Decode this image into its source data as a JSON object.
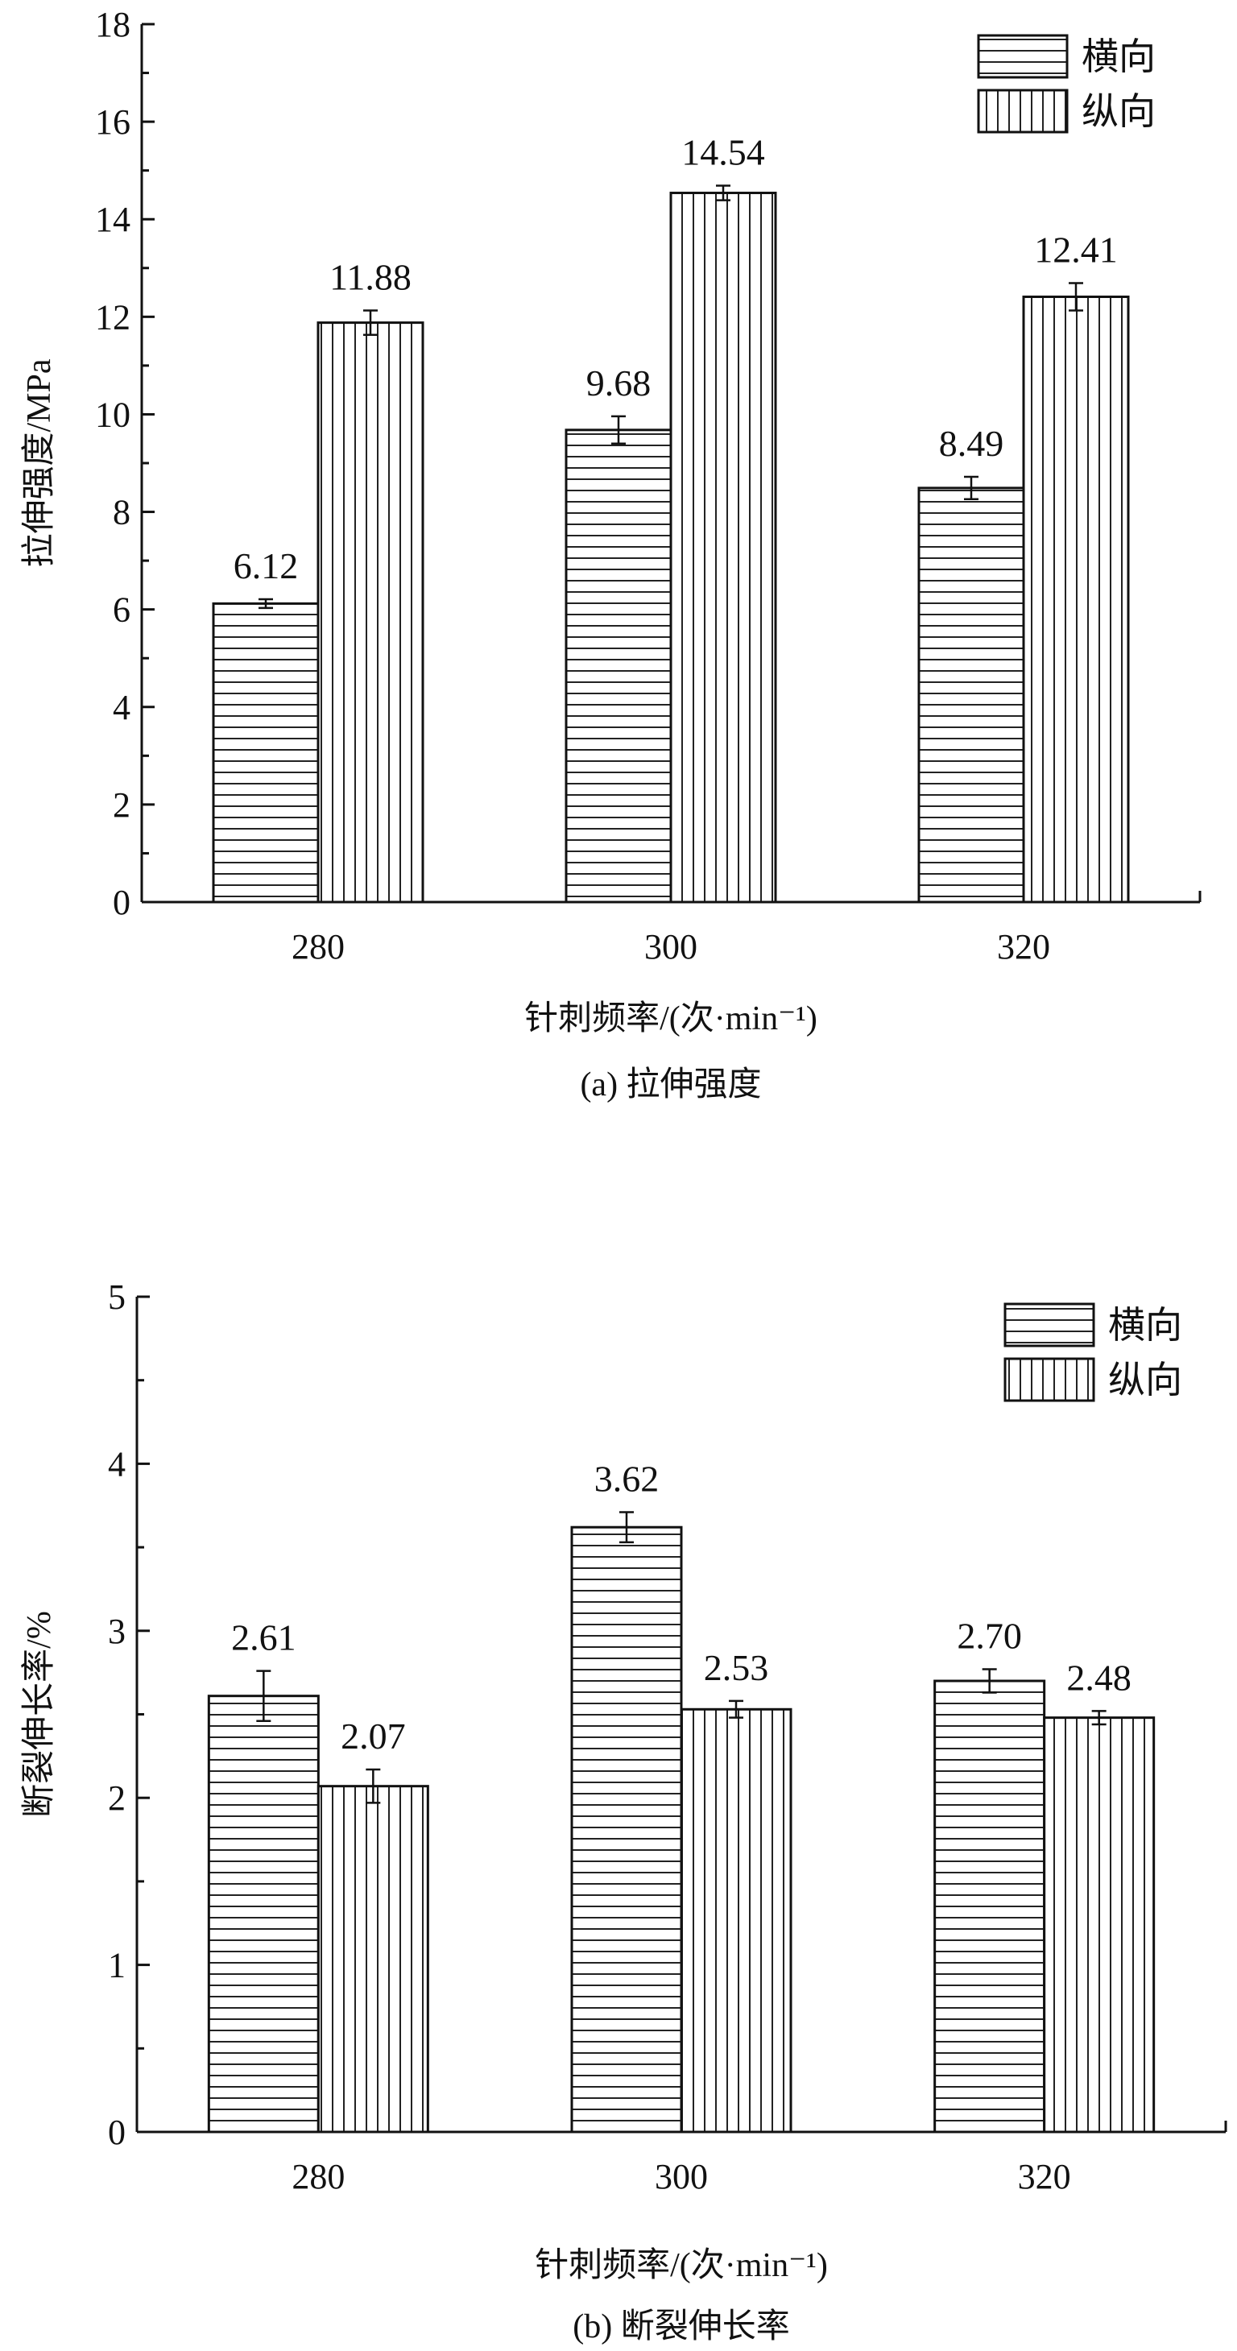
{
  "chart_data": [
    {
      "type": "bar",
      "categories": [
        "280",
        "300",
        "320"
      ],
      "series": [
        {
          "name": "横向",
          "pattern": "horizontal",
          "values": [
            6.12,
            9.68,
            8.49
          ],
          "errors": [
            0.09,
            0.28,
            0.23
          ]
        },
        {
          "name": "纵向",
          "pattern": "vertical",
          "values": [
            11.88,
            14.54,
            12.41
          ],
          "errors": [
            0.25,
            0.15,
            0.28
          ]
        }
      ],
      "data_labels": [
        [
          "6.12",
          "9.68",
          "8.49"
        ],
        [
          "11.88",
          "14.54",
          "12.41"
        ]
      ],
      "xlabel": "针刺频率/(次·min⁻¹)",
      "ylabel": "拉伸强度/MPa",
      "caption": "(a) 拉伸强度",
      "ylim": [
        0,
        18
      ],
      "yticks": [
        0,
        2,
        4,
        6,
        8,
        10,
        12,
        14,
        16,
        18
      ],
      "legend": "top-right",
      "grid": false
    },
    {
      "type": "bar",
      "categories": [
        "280",
        "300",
        "320"
      ],
      "series": [
        {
          "name": "横向",
          "pattern": "horizontal",
          "values": [
            2.61,
            3.62,
            2.7
          ],
          "errors": [
            0.15,
            0.09,
            0.07
          ]
        },
        {
          "name": "纵向",
          "pattern": "vertical",
          "values": [
            2.07,
            2.53,
            2.48
          ],
          "errors": [
            0.1,
            0.05,
            0.04
          ]
        }
      ],
      "data_labels": [
        [
          "2.61",
          "3.62",
          "2.70"
        ],
        [
          "2.07",
          "2.53",
          "2.48"
        ]
      ],
      "xlabel": "针刺频率/(次·min⁻¹)",
      "ylabel": "断裂伸长率/%",
      "caption": "(b) 断裂伸长率",
      "ylim": [
        0,
        5
      ],
      "yticks": [
        0,
        1,
        2,
        3,
        4,
        5
      ],
      "legend": "top-right",
      "grid": false
    }
  ]
}
